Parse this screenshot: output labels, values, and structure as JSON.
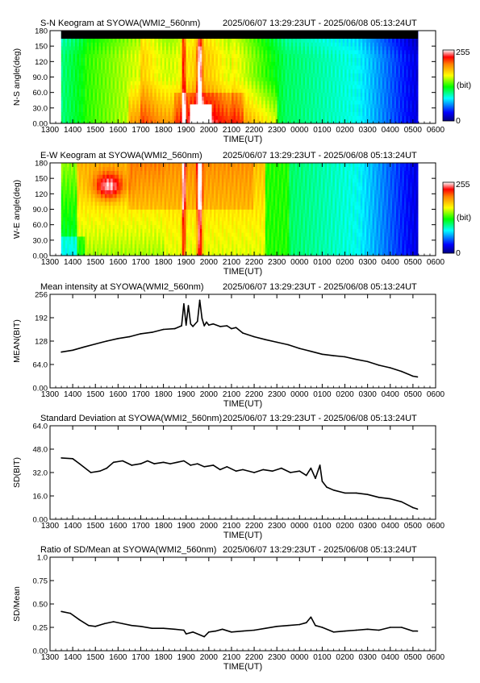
{
  "colorbar": {
    "max_label": "255",
    "unit_label": "(bit)",
    "min_label": "0"
  },
  "time_axis": {
    "ticks": [
      "1300",
      "1400",
      "1500",
      "1600",
      "1700",
      "1800",
      "1900",
      "2000",
      "2100",
      "2200",
      "2300",
      "0000",
      "0100",
      "0200",
      "0300",
      "0400",
      "0500",
      "0600"
    ]
  },
  "chart_data": [
    {
      "type": "heatmap",
      "id": "ns",
      "title": "S-N Keogram at SYOWA(WMI2_560nm)",
      "period": "2025/06/07 13:29:23UT - 2025/06/08 05:13:24UT",
      "xlabel": "TIME(UT)",
      "ylabel": "N-S angle(deg)",
      "yticks": [
        "0.00",
        "30.0",
        "60.0",
        "90.0",
        "120",
        "150",
        "180"
      ],
      "xlim": [
        0,
        17
      ],
      "ylim": [
        0,
        180
      ],
      "zlim": [
        0,
        255
      ],
      "data_start_hours": 0.49,
      "data_end_hours": 16.22
    },
    {
      "type": "heatmap",
      "id": "ew",
      "title": "E-W Keogram at SYOWA(WMI2_560nm)",
      "period": "2025/06/07 13:29:23UT - 2025/06/08 05:13:24UT",
      "xlabel": "TIME(UT)",
      "ylabel": "W-E angle(deg)",
      "yticks": [
        "0.00",
        "30.0",
        "60.0",
        "90.0",
        "120",
        "150",
        "180"
      ],
      "xlim": [
        0,
        17
      ],
      "ylim": [
        0,
        180
      ],
      "zlim": [
        0,
        255
      ],
      "data_start_hours": 0.49,
      "data_end_hours": 16.22
    },
    {
      "type": "line",
      "id": "mean",
      "title": "Mean intensity at SYOWA(WMI2_560nm)",
      "period": "2025/06/07 13:29:23UT - 2025/06/08 05:13:24UT",
      "xlabel": "TIME(UT)",
      "ylabel": "MEAN(BIT)",
      "yticks": [
        "0.00",
        "64.0",
        "128",
        "192",
        "256"
      ],
      "xlim": [
        0,
        17
      ],
      "ylim": [
        0,
        256
      ],
      "x": [
        0.5,
        1.0,
        1.5,
        2.0,
        2.5,
        3.0,
        3.5,
        4.0,
        4.5,
        5.0,
        5.5,
        5.8,
        5.9,
        6.0,
        6.1,
        6.2,
        6.3,
        6.5,
        6.6,
        6.7,
        6.8,
        6.9,
        7.0,
        7.2,
        7.5,
        7.8,
        8.0,
        8.2,
        8.5,
        9.0,
        9.5,
        10.0,
        10.5,
        11.0,
        11.5,
        12.0,
        12.5,
        13.0,
        13.5,
        14.0,
        14.5,
        15.0,
        15.5,
        16.0,
        16.2
      ],
      "y": [
        98,
        103,
        112,
        120,
        128,
        135,
        140,
        148,
        152,
        160,
        162,
        170,
        230,
        172,
        225,
        175,
        168,
        182,
        240,
        190,
        170,
        180,
        172,
        175,
        168,
        170,
        162,
        165,
        150,
        140,
        132,
        125,
        118,
        108,
        100,
        92,
        88,
        85,
        78,
        72,
        62,
        55,
        45,
        32,
        30
      ]
    },
    {
      "type": "line",
      "id": "sd",
      "title": "Standard Deviation at SYOWA(WMI2_560nm)",
      "period": "2025/06/07 13:29:23UT - 2025/06/08 05:13:24UT",
      "xlabel": "TIME(UT)",
      "ylabel": "SD(BIT)",
      "yticks": [
        "0.00",
        "16.0",
        "32.0",
        "48.0",
        "64.0"
      ],
      "xlim": [
        0,
        17
      ],
      "ylim": [
        0,
        64
      ],
      "x": [
        0.5,
        1.0,
        1.3,
        1.8,
        2.2,
        2.5,
        2.8,
        3.2,
        3.6,
        4.0,
        4.3,
        4.6,
        5.0,
        5.3,
        5.6,
        5.9,
        6.2,
        6.5,
        6.8,
        7.2,
        7.5,
        7.8,
        8.2,
        8.5,
        9.0,
        9.4,
        9.8,
        10.2,
        10.6,
        11.0,
        11.3,
        11.5,
        11.7,
        11.9,
        12.0,
        12.2,
        12.5,
        13.0,
        13.5,
        14.0,
        14.5,
        15.0,
        15.5,
        16.0,
        16.2
      ],
      "y": [
        42,
        41.5,
        38,
        32,
        33,
        35,
        39,
        40,
        37,
        38,
        40,
        38,
        39,
        38,
        39,
        40,
        37,
        38,
        36,
        37,
        34,
        36,
        33,
        34,
        32,
        34,
        33,
        35,
        32,
        33,
        30,
        35,
        28,
        37,
        26,
        22,
        20,
        18,
        18,
        17,
        15,
        14,
        12,
        8,
        7
      ]
    },
    {
      "type": "line",
      "id": "ratio",
      "title": "Ratio of SD/Mean at SYOWA(WMI2_560nm)",
      "period": "2025/06/07 13:29:23UT - 2025/06/08 05:13:24UT",
      "xlabel": "TIME(UT)",
      "ylabel": "SD/Mean",
      "yticks": [
        "0.00",
        "0.25",
        "0.50",
        "0.75",
        "1.0"
      ],
      "xlim": [
        0,
        17
      ],
      "ylim": [
        0,
        1.0
      ],
      "x": [
        0.5,
        0.9,
        1.3,
        1.7,
        2.0,
        2.4,
        2.8,
        3.2,
        3.6,
        4.0,
        4.5,
        5.0,
        5.5,
        5.9,
        6.0,
        6.3,
        6.6,
        6.8,
        7.0,
        7.3,
        7.6,
        8.0,
        8.5,
        9.0,
        9.5,
        10.0,
        10.5,
        11.0,
        11.3,
        11.5,
        11.7,
        12.0,
        12.5,
        13.0,
        13.5,
        14.0,
        14.5,
        15.0,
        15.5,
        16.0,
        16.2
      ],
      "y": [
        0.42,
        0.4,
        0.33,
        0.27,
        0.26,
        0.29,
        0.31,
        0.29,
        0.27,
        0.26,
        0.24,
        0.24,
        0.23,
        0.22,
        0.18,
        0.2,
        0.17,
        0.15,
        0.2,
        0.21,
        0.23,
        0.2,
        0.21,
        0.22,
        0.24,
        0.26,
        0.27,
        0.28,
        0.3,
        0.36,
        0.27,
        0.25,
        0.2,
        0.21,
        0.22,
        0.23,
        0.22,
        0.25,
        0.25,
        0.21,
        0.21
      ]
    }
  ]
}
